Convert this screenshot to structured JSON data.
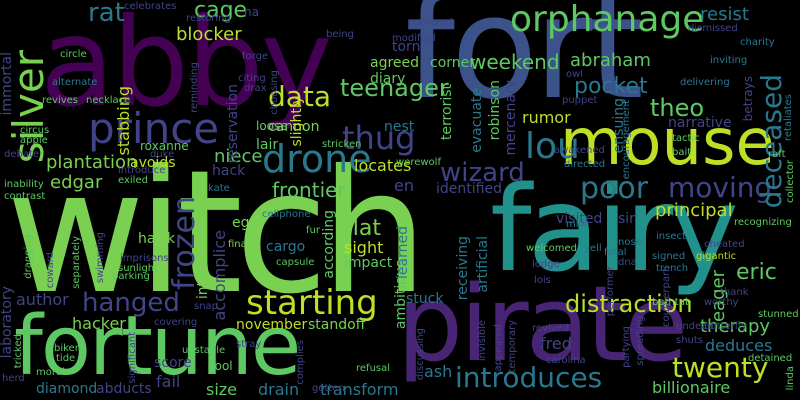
{
  "word_cloud": {
    "palette": {
      "background": "#000000",
      "dark_purple": "#440154",
      "indigo": "#3b528b",
      "slate_blue": "#414487",
      "teal": "#21918c",
      "sea_green": "#2a788e",
      "green": "#22a884",
      "light_green": "#7ad151",
      "lime": "#bddf26",
      "bright_green": "#5ec962",
      "yellow": "#fde725"
    },
    "words": [
      {
        "text": "witch",
        "color": "#7ad151"
      },
      {
        "text": "fort",
        "color": "#3b528b"
      },
      {
        "text": "abby",
        "color": "#440154"
      },
      {
        "text": "fairy",
        "color": "#21918c"
      },
      {
        "text": "pirate",
        "color": "#482475"
      },
      {
        "text": "fortune",
        "color": "#5ec962"
      },
      {
        "text": "mouse",
        "color": "#bddf26"
      },
      {
        "text": "prince",
        "color": "#414487"
      },
      {
        "text": "orphanage",
        "color": "#5ec962"
      },
      {
        "text": "drone",
        "color": "#2a788e"
      },
      {
        "text": "silver",
        "color": "#7ad151"
      },
      {
        "text": "data",
        "color": "#bddf26"
      },
      {
        "text": "teenager",
        "color": "#5ec962"
      },
      {
        "text": "thug",
        "color": "#414487"
      },
      {
        "text": "lou",
        "color": "#2a788e"
      },
      {
        "text": "wizard",
        "color": "#414487"
      },
      {
        "text": "poor",
        "color": "#2a788e"
      },
      {
        "text": "moving",
        "color": "#414487"
      },
      {
        "text": "starting",
        "color": "#bddf26"
      },
      {
        "text": "hanged",
        "color": "#414487"
      },
      {
        "text": "introduces",
        "color": "#2a788e"
      },
      {
        "text": "twenty",
        "color": "#bddf26"
      },
      {
        "text": "frozen",
        "color": "#414487"
      },
      {
        "text": "distraction",
        "color": "#bddf26"
      },
      {
        "text": "deceased",
        "color": "#2a788e"
      },
      {
        "text": "pocket",
        "color": "#2a788e"
      },
      {
        "text": "theo",
        "color": "#5ec962"
      },
      {
        "text": "weekend",
        "color": "#5ec962"
      },
      {
        "text": "abraham",
        "color": "#5ec962"
      },
      {
        "text": "rat",
        "color": "#2a788e"
      },
      {
        "text": "cage",
        "color": "#5ec962"
      },
      {
        "text": "blocker",
        "color": "#bddf26"
      },
      {
        "text": "resist",
        "color": "#2a788e"
      },
      {
        "text": "plantation",
        "color": "#7ad151"
      },
      {
        "text": "edgar",
        "color": "#7ad151"
      },
      {
        "text": "frontier",
        "color": "#5ec962"
      },
      {
        "text": "niece",
        "color": "#5ec962"
      },
      {
        "text": "principal",
        "color": "#bddf26"
      },
      {
        "text": "therapy",
        "color": "#5ec962"
      },
      {
        "text": "eric",
        "color": "#5ec962"
      },
      {
        "text": "deduces",
        "color": "#2a788e"
      },
      {
        "text": "billionaire",
        "color": "#5ec962"
      },
      {
        "text": "flat",
        "color": "#7ad151"
      },
      {
        "text": "sight",
        "color": "#bddf26"
      },
      {
        "text": "impact",
        "color": "#5ec962"
      },
      {
        "text": "author",
        "color": "#414487"
      },
      {
        "text": "hacker",
        "color": "#7ad151"
      },
      {
        "text": "november",
        "color": "#bddf26"
      },
      {
        "text": "standoff",
        "color": "#7ad151"
      },
      {
        "text": "fail",
        "color": "#414487"
      },
      {
        "text": "diamond",
        "color": "#2a788e"
      },
      {
        "text": "abducts",
        "color": "#414487"
      },
      {
        "text": "size",
        "color": "#5ec962"
      },
      {
        "text": "drain",
        "color": "#2a788e"
      },
      {
        "text": "transform",
        "color": "#2a788e"
      },
      {
        "text": "ash",
        "color": "#2a788e"
      },
      {
        "text": "fred",
        "color": "#414487"
      },
      {
        "text": "stuck",
        "color": "#2a788e"
      },
      {
        "text": "locates",
        "color": "#bddf26"
      },
      {
        "text": "cannon",
        "color": "#7ad151"
      },
      {
        "text": "lair",
        "color": "#5ec962"
      },
      {
        "text": "nest",
        "color": "#2a788e"
      },
      {
        "text": "rumor",
        "color": "#bddf26"
      },
      {
        "text": "corner",
        "color": "#5ec962"
      },
      {
        "text": "torn",
        "color": "#414487"
      },
      {
        "text": "agreed",
        "color": "#7ad151"
      },
      {
        "text": "diary",
        "color": "#5ec962"
      },
      {
        "text": "terrorist",
        "color": "#5ec962"
      },
      {
        "text": "evacuate",
        "color": "#2a788e"
      },
      {
        "text": "robinson",
        "color": "#5ec962"
      },
      {
        "text": "mercenary",
        "color": "#414487"
      },
      {
        "text": "ensuing",
        "color": "#2a788e"
      },
      {
        "text": "eager",
        "color": "#5ec962"
      },
      {
        "text": "visited",
        "color": "#414487"
      },
      {
        "text": "identified",
        "color": "#414487"
      },
      {
        "text": "receiving",
        "color": "#2a788e"
      },
      {
        "text": "artificial",
        "color": "#2a788e"
      },
      {
        "text": "ambitious",
        "color": "#5ec962"
      },
      {
        "text": "learned",
        "color": "#2a788e"
      },
      {
        "text": "according",
        "color": "#5ec962"
      },
      {
        "text": "international",
        "color": "#7ad151"
      },
      {
        "text": "accomplice",
        "color": "#414487"
      },
      {
        "text": "cargo",
        "color": "#2a788e"
      },
      {
        "text": "ego",
        "color": "#7ad151"
      },
      {
        "text": "hawk",
        "color": "#7ad151"
      },
      {
        "text": "score",
        "color": "#414487"
      },
      {
        "text": "avoids",
        "color": "#bddf26"
      },
      {
        "text": "hack",
        "color": "#414487"
      },
      {
        "text": "roxanne",
        "color": "#5ec962"
      },
      {
        "text": "loose",
        "color": "#5ec962"
      },
      {
        "text": "slightly",
        "color": "#bddf26"
      },
      {
        "text": "stabbing",
        "color": "#bddf26"
      },
      {
        "text": "reservation",
        "color": "#414487"
      },
      {
        "text": "immortal",
        "color": "#414487"
      },
      {
        "text": "laboratory",
        "color": "#414487"
      },
      {
        "text": "en",
        "color": "#414487"
      },
      {
        "text": "sir",
        "color": "#414487"
      },
      {
        "text": "narrative",
        "color": "#414487"
      },
      {
        "text": "betrays",
        "color": "#414487"
      },
      {
        "text": "tactic",
        "color": "#5ec962"
      },
      {
        "text": "bait",
        "color": "#5ec962"
      },
      {
        "text": "directed",
        "color": "#2a788e"
      },
      {
        "text": "werewolf",
        "color": "#5ec962"
      },
      {
        "text": "milk",
        "color": "#2a788e"
      },
      {
        "text": "stricken",
        "color": "#5ec962"
      },
      {
        "text": "cellphone",
        "color": "#2a788e"
      },
      {
        "text": "finale",
        "color": "#7ad151"
      },
      {
        "text": "capsule",
        "color": "#5ec962"
      },
      {
        "text": "kate",
        "color": "#2a788e"
      },
      {
        "text": "duke",
        "color": "#414487"
      },
      {
        "text": "exiled",
        "color": "#5ec962"
      },
      {
        "text": "introduce",
        "color": "#414487"
      },
      {
        "text": "inability",
        "color": "#5ec962"
      },
      {
        "text": "contrast",
        "color": "#5ec962"
      },
      {
        "text": "debate",
        "color": "#414487"
      },
      {
        "text": "circus",
        "color": "#5ec962"
      },
      {
        "text": "apple",
        "color": "#5ec962"
      },
      {
        "text": "revives",
        "color": "#5ec962"
      },
      {
        "text": "necklace",
        "color": "#5ec962"
      },
      {
        "text": "alternate",
        "color": "#2a788e"
      },
      {
        "text": "circle",
        "color": "#5ec962"
      },
      {
        "text": "celebrates",
        "color": "#414487"
      },
      {
        "text": "restoring",
        "color": "#414487"
      },
      {
        "text": "reminding",
        "color": "#414487"
      },
      {
        "text": "forge",
        "color": "#414487"
      },
      {
        "text": "citing",
        "color": "#414487"
      },
      {
        "text": "drax",
        "color": "#414487"
      },
      {
        "text": "choosing",
        "color": "#414487"
      },
      {
        "text": "being",
        "color": "#414487"
      },
      {
        "text": "na",
        "color": "#414487"
      },
      {
        "text": "cornered",
        "color": "#414487"
      },
      {
        "text": "modified",
        "color": "#414487"
      },
      {
        "text": "owl",
        "color": "#414487"
      },
      {
        "text": "puppet",
        "color": "#414487"
      },
      {
        "text": "delivering",
        "color": "#2a788e"
      },
      {
        "text": "inviting",
        "color": "#2a788e"
      },
      {
        "text": "charity",
        "color": "#2a788e"
      },
      {
        "text": "retaliates",
        "color": "#2a788e"
      },
      {
        "text": "encouragement",
        "color": "#2a788e"
      },
      {
        "text": "awakened",
        "color": "#414487"
      },
      {
        "text": "dismissed",
        "color": "#414487"
      },
      {
        "text": "raft",
        "color": "#5ec962"
      },
      {
        "text": "collector",
        "color": "#5ec962"
      },
      {
        "text": "recognizing",
        "color": "#5ec962"
      },
      {
        "text": "gigantic",
        "color": "#bddf26"
      },
      {
        "text": "cheated",
        "color": "#414487"
      },
      {
        "text": "signed",
        "color": "#2a788e"
      },
      {
        "text": "insect",
        "color": "#2a788e"
      },
      {
        "text": "dna",
        "color": "#414487"
      },
      {
        "text": "nose",
        "color": "#2a788e"
      },
      {
        "text": "trench",
        "color": "#2a788e"
      },
      {
        "text": "thank",
        "color": "#414487"
      },
      {
        "text": "worthy",
        "color": "#414487"
      },
      {
        "text": "bathtub",
        "color": "#5ec962"
      },
      {
        "text": "stunned",
        "color": "#5ec962"
      },
      {
        "text": "butterfly",
        "color": "#414487"
      },
      {
        "text": "undead",
        "color": "#414487"
      },
      {
        "text": "shuts",
        "color": "#414487"
      },
      {
        "text": "detained",
        "color": "#5ec962"
      },
      {
        "text": "linda",
        "color": "#5ec962"
      },
      {
        "text": "partying",
        "color": "#414487"
      },
      {
        "text": "spreading",
        "color": "#414487"
      },
      {
        "text": "performer",
        "color": "#414487"
      },
      {
        "text": "counterpart",
        "color": "#414487"
      },
      {
        "text": "fatal",
        "color": "#2a788e"
      },
      {
        "text": "yell",
        "color": "#2a788e"
      },
      {
        "text": "lodge",
        "color": "#414487"
      },
      {
        "text": "lois",
        "color": "#414487"
      },
      {
        "text": "revived",
        "color": "#414487"
      },
      {
        "text": "appeared",
        "color": "#414487"
      },
      {
        "text": "carolina",
        "color": "#414487"
      },
      {
        "text": "temporary",
        "color": "#414487"
      },
      {
        "text": "invisible",
        "color": "#414487"
      },
      {
        "text": "welcomed",
        "color": "#5ec962"
      },
      {
        "text": "discussing",
        "color": "#414487"
      },
      {
        "text": "refusal",
        "color": "#5ec962"
      },
      {
        "text": "gotten",
        "color": "#414487"
      },
      {
        "text": "complies",
        "color": "#414487"
      },
      {
        "text": "cool",
        "color": "#5ec962"
      },
      {
        "text": "stray",
        "color": "#414487"
      },
      {
        "text": "covering",
        "color": "#414487"
      },
      {
        "text": "snap",
        "color": "#414487"
      },
      {
        "text": "fur",
        "color": "#5ec962"
      },
      {
        "text": "parking",
        "color": "#5ec962"
      },
      {
        "text": "imprisons",
        "color": "#414487"
      },
      {
        "text": "sunlight",
        "color": "#5ec962"
      },
      {
        "text": "swimming",
        "color": "#414487"
      },
      {
        "text": "separately",
        "color": "#5ec962"
      },
      {
        "text": "dragging",
        "color": "#5ec962"
      },
      {
        "text": "coward",
        "color": "#414487"
      },
      {
        "text": "biker",
        "color": "#5ec962"
      },
      {
        "text": "tide",
        "color": "#5ec962"
      },
      {
        "text": "unstable",
        "color": "#5ec962"
      },
      {
        "text": "significant",
        "color": "#414487"
      },
      {
        "text": "tricked",
        "color": "#5ec962"
      },
      {
        "text": "herd",
        "color": "#414487"
      },
      {
        "text": "moral",
        "color": "#5ec962"
      }
    ]
  }
}
